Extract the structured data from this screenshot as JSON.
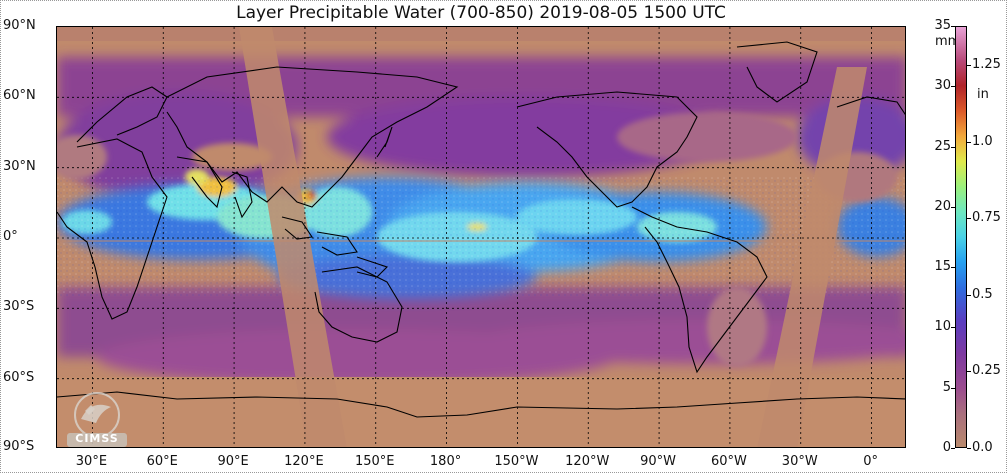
{
  "title": "Layer Precipitable Water (700-850)  2019-08-05 1500 UTC",
  "map": {
    "projection": "equirectangular",
    "lon_range": [
      15,
      375
    ],
    "lat_range": [
      -90,
      90
    ],
    "latitude_labels": [
      "90°N",
      "60°N",
      "30°N",
      "0°",
      "30°S",
      "60°S",
      "90°S"
    ],
    "latitude_values": [
      90,
      60,
      30,
      0,
      -30,
      -60,
      -90
    ],
    "longitude_labels": [
      "30°E",
      "60°E",
      "90°E",
      "120°E",
      "150°E",
      "180°",
      "150°W",
      "120°W",
      "90°W",
      "60°W",
      "30°W",
      "0°"
    ],
    "longitude_values": [
      30,
      60,
      90,
      120,
      150,
      180,
      210,
      240,
      270,
      300,
      330,
      360
    ],
    "grid": "dotted"
  },
  "colorbar": {
    "unit_mm": "mm",
    "unit_in": "in",
    "mm_ticks": [
      "35",
      "30",
      "25",
      "20",
      "15",
      "10",
      "5",
      "0"
    ],
    "mm_values": [
      35,
      30,
      25,
      20,
      15,
      10,
      5,
      0
    ],
    "in_ticks": [
      "1.25",
      "1.0",
      "0.75",
      "0.5",
      "0.25",
      "0.0"
    ],
    "in_values": [
      1.25,
      1.0,
      0.75,
      0.5,
      0.25,
      0.0
    ],
    "range_mm": [
      0,
      35
    ]
  },
  "logo": {
    "text": "CIMSS"
  },
  "colors": {
    "dry": "#c08a6c",
    "moist_low": "#8c3c9c",
    "moist_mid": "#3a8ee8",
    "moist_high": "#6fe0e8",
    "peak": "#f0c040",
    "coast": "#000000"
  }
}
